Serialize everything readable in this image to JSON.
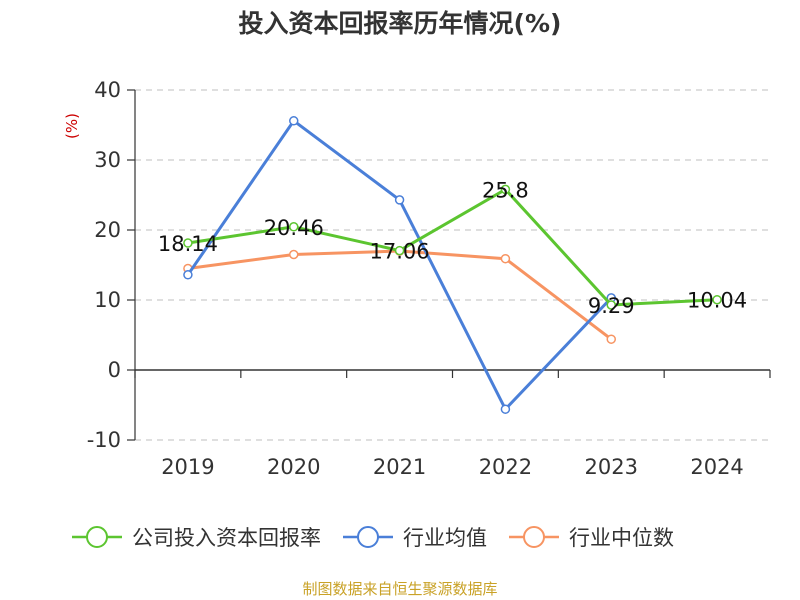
{
  "chart_data": {
    "type": "line",
    "title": "投入资本回报率历年情况(%)",
    "ylabel": "(%)",
    "ylim": [
      -10,
      40
    ],
    "yticks": [
      40,
      30,
      20,
      10,
      0,
      -10
    ],
    "grid": true,
    "legend_position": "bottom",
    "categories": [
      "2019",
      "2020",
      "2021",
      "2022",
      "2023",
      "2024"
    ],
    "series": [
      {
        "name": "公司投入资本回报率",
        "color": "#5cc530",
        "values": [
          18.14,
          20.46,
          17.06,
          25.8,
          9.29,
          10.04
        ],
        "labels": [
          "18.14",
          "20.46",
          "17.06",
          "25.8",
          "9.29",
          "10.04"
        ]
      },
      {
        "name": "行业均值",
        "color": "#4a7fd8",
        "values": [
          13.6,
          35.6,
          24.3,
          -5.6,
          10.3,
          null
        ]
      },
      {
        "name": "行业中位数",
        "color": "#f79462",
        "values": [
          14.5,
          16.5,
          17.0,
          15.9,
          4.4,
          null
        ]
      }
    ]
  },
  "footer": {
    "source": "制图数据来自恒生聚源数据库"
  }
}
